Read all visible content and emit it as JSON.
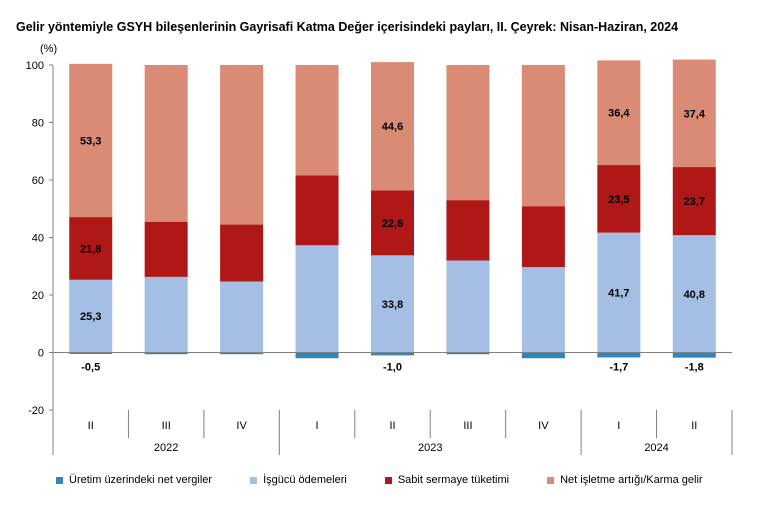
{
  "chart_data": {
    "type": "bar",
    "stacked": true,
    "title": "Gelir yöntemiyle GSYH bileşenlerinin Gayrisafi Katma Değer içerisindeki payları, II. Çeyrek: Nisan-Haziran, 2024",
    "ylabel": "(%)",
    "ylim": [
      -20,
      100
    ],
    "yticks": [
      "-20",
      "0",
      "20",
      "40",
      "60",
      "80",
      "100"
    ],
    "categories": [
      "II",
      "III",
      "IV",
      "I",
      "II",
      "III",
      "IV",
      "I",
      "II"
    ],
    "years": [
      {
        "label": "2022",
        "start": 0,
        "end": 2
      },
      {
        "label": "2023",
        "start": 3,
        "end": 6
      },
      {
        "label": "2024",
        "start": 7,
        "end": 8
      }
    ],
    "series": [
      {
        "name": "Üretim üzerindeki net vergiler",
        "color": "#2e86c1",
        "values": [
          -0.5,
          -0.6,
          -0.6,
          -2.0,
          -1.0,
          -0.6,
          -2.0,
          -1.7,
          -1.8
        ],
        "labels": [
          "-0,5",
          "",
          "",
          "",
          "-1,0",
          "",
          "",
          "-1,7",
          "-1,8"
        ]
      },
      {
        "name": "İşgücü ödemeleri",
        "color": "#a4bfe3",
        "values": [
          25.3,
          26.3,
          24.7,
          37.3,
          33.8,
          32.0,
          29.7,
          41.7,
          40.8
        ],
        "labels": [
          "25,3",
          "",
          "",
          "",
          "33,8",
          "",
          "",
          "41,7",
          "40,8"
        ]
      },
      {
        "name": "Sabit sermaye tüketimi",
        "color": "#b01818",
        "values": [
          21.8,
          19.2,
          19.8,
          24.3,
          22.6,
          21.0,
          21.2,
          23.5,
          23.7
        ],
        "labels": [
          "21,8",
          "",
          "",
          "",
          "22,6",
          "",
          "",
          "23,5",
          "23,7"
        ]
      },
      {
        "name": "Net işletme artığı/Karma gelir",
        "color": "#d98b76",
        "values": [
          53.3,
          54.5,
          55.5,
          38.4,
          44.6,
          47.0,
          49.1,
          36.4,
          37.4
        ],
        "labels": [
          "53,3",
          "",
          "",
          "",
          "44,6",
          "",
          "",
          "36,4",
          "37,4"
        ]
      }
    ],
    "legend_position": "bottom",
    "grid": false
  }
}
